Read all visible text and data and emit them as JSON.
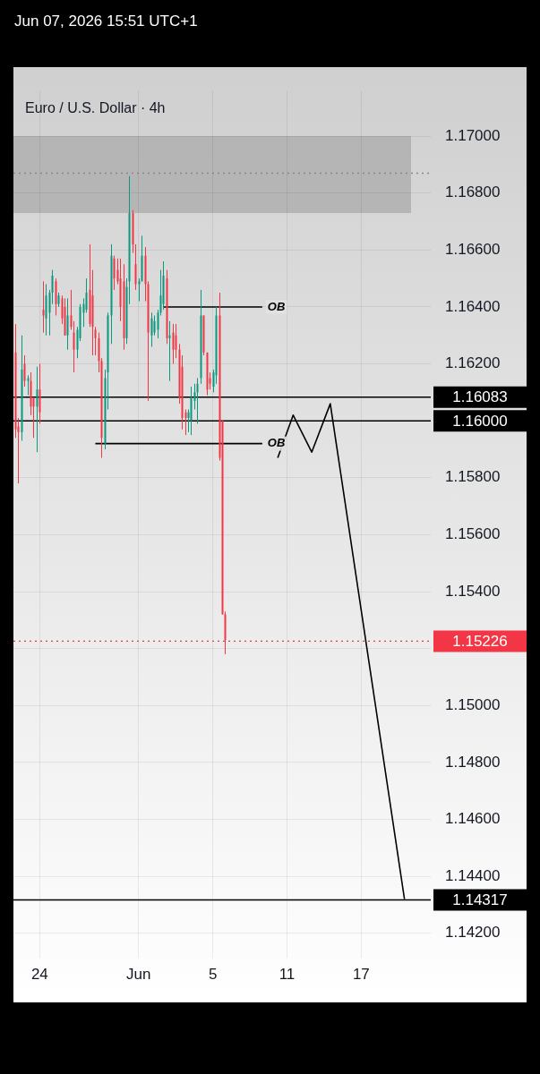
{
  "chart_data": {
    "type": "candlestick",
    "title": "Euro / U.S. Dollar · 4h",
    "annotations": [
      "Jun 07, 2026 15:51 UTC+1",
      "OB",
      "OB"
    ],
    "categories": [
      null,
      null,
      null,
      null,
      null,
      null,
      null,
      null,
      "24",
      null,
      null,
      null,
      null,
      null,
      null,
      null,
      null,
      null,
      null,
      null,
      null,
      null,
      null,
      null,
      null,
      null,
      null,
      null,
      null,
      null,
      null,
      null,
      null,
      null,
      null,
      null,
      null,
      null,
      null,
      null,
      "Jun",
      null,
      null,
      null,
      null,
      null,
      null,
      null,
      null,
      null,
      null,
      null,
      null,
      null,
      null,
      null,
      null,
      null,
      null,
      null,
      null,
      null,
      null,
      null,
      "5",
      null,
      null,
      null,
      null,
      null,
      null,
      null,
      null,
      null,
      null,
      null,
      null,
      null,
      null,
      null,
      null,
      null,
      null,
      null,
      null,
      null,
      null,
      null,
      "11",
      null,
      null,
      null,
      null,
      null,
      null,
      null,
      null,
      null,
      null,
      null,
      null,
      null,
      null,
      null,
      null,
      null,
      null,
      null,
      null,
      null,
      null,
      null,
      "17",
      null,
      null,
      null,
      null,
      null,
      null,
      null,
      null,
      null,
      null,
      null,
      null,
      null,
      null,
      null,
      null,
      null,
      null,
      null,
      null,
      null,
      null
    ],
    "ohlc": [
      [
        1.1624,
        1.1634,
        1.1594,
        1.1597
      ],
      [
        1.1598,
        1.1601,
        1.1578,
        1.1596
      ],
      [
        1.1596,
        1.163,
        1.1593,
        1.1618
      ],
      [
        1.162,
        1.1623,
        1.1612,
        1.1614
      ],
      [
        1.1614,
        1.1616,
        1.1609,
        1.1615
      ],
      [
        1.1614,
        1.1617,
        1.1602,
        1.1605
      ],
      [
        1.1608,
        1.1608,
        1.1594,
        1.1605
      ],
      [
        1.1605,
        1.1619,
        1.1589,
        1.1611
      ],
      [
        1.1611,
        1.162,
        1.1599,
        1.1603
      ],
      [
        1.1639,
        1.1649,
        1.1631,
        1.1637
      ],
      [
        1.1636,
        1.1648,
        1.163,
        1.1644
      ],
      [
        1.1638,
        1.1646,
        1.163,
        1.1645
      ],
      [
        1.1645,
        1.1653,
        1.1641,
        1.1651
      ],
      [
        1.1649,
        1.165,
        1.1637,
        1.1641
      ],
      [
        1.1641,
        1.1645,
        1.164,
        1.1644
      ],
      [
        1.1643,
        1.1644,
        1.1634,
        1.1636
      ],
      [
        1.164,
        1.1643,
        1.163,
        1.163
      ],
      [
        1.163,
        1.1643,
        1.1625,
        1.1637
      ],
      [
        1.1637,
        1.1646,
        1.1632,
        1.1633
      ],
      [
        1.1631,
        1.1635,
        1.1617,
        1.1625
      ],
      [
        1.1625,
        1.1633,
        1.1622,
        1.1632
      ],
      [
        1.1629,
        1.1641,
        1.1628,
        1.164
      ],
      [
        1.1638,
        1.1643,
        1.1633,
        1.1641
      ],
      [
        1.1639,
        1.165,
        1.1638,
        1.1645
      ],
      [
        1.1646,
        1.1662,
        1.1633,
        1.1634
      ],
      [
        1.1644,
        1.1653,
        1.1623,
        1.1633
      ],
      [
        1.1632,
        1.1633,
        1.1623,
        1.1629
      ],
      [
        1.1629,
        1.1631,
        1.1617,
        1.1621
      ],
      [
        1.1621,
        1.1622,
        1.1587,
        1.1594
      ],
      [
        1.1592,
        1.1618,
        1.159,
        1.1615
      ],
      [
        1.1617,
        1.1638,
        1.1604,
        1.1637
      ],
      [
        1.1637,
        1.1662,
        1.1627,
        1.1658
      ],
      [
        1.1657,
        1.1658,
        1.1646,
        1.165
      ],
      [
        1.1653,
        1.1657,
        1.1648,
        1.1649
      ],
      [
        1.165,
        1.1657,
        1.1635,
        1.164
      ],
      [
        1.1649,
        1.1655,
        1.1625,
        1.1629
      ],
      [
        1.1629,
        1.165,
        1.1627,
        1.1647
      ],
      [
        1.1649,
        1.1686,
        1.1641,
        1.1673
      ],
      [
        1.1673,
        1.1674,
        1.1659,
        1.1662
      ],
      [
        1.1655,
        1.1662,
        1.1646,
        1.1648
      ],
      [
        1.1648,
        1.165,
        1.1642,
        1.1649
      ],
      [
        1.1649,
        1.1665,
        1.1649,
        1.1658
      ],
      [
        1.1658,
        1.1661,
        1.1642,
        1.1648
      ],
      [
        1.1648,
        1.1649,
        1.1607,
        1.1631
      ],
      [
        1.163,
        1.1638,
        1.1626,
        1.1636
      ],
      [
        1.1631,
        1.1637,
        1.163,
        1.1635
      ],
      [
        1.1632,
        1.1639,
        1.1629,
        1.1638
      ],
      [
        1.1638,
        1.1653,
        1.1637,
        1.1644
      ],
      [
        1.1641,
        1.1656,
        1.1639,
        1.1651
      ],
      [
        1.165,
        1.1653,
        1.1627,
        1.1629
      ],
      [
        1.1629,
        1.1635,
        1.1614,
        1.163
      ],
      [
        1.1631,
        1.1634,
        1.162,
        1.1625
      ],
      [
        1.163,
        1.1634,
        1.1622,
        1.1625
      ],
      [
        1.1625,
        1.1627,
        1.1606,
        1.1608
      ],
      [
        1.1619,
        1.1623,
        1.1597,
        1.1601
      ],
      [
        1.1603,
        1.1604,
        1.1595,
        1.1601
      ],
      [
        1.1601,
        1.1604,
        1.1596,
        1.1603
      ],
      [
        1.16,
        1.1612,
        1.1595,
        1.1608
      ],
      [
        1.1607,
        1.1613,
        1.1604,
        1.161
      ],
      [
        1.161,
        1.1615,
        1.1599,
        1.1613
      ],
      [
        1.1615,
        1.1646,
        1.1613,
        1.1637
      ],
      [
        1.1637,
        1.1637,
        1.1623,
        1.1624
      ],
      [
        1.1624,
        1.1624,
        1.1609,
        1.1611
      ],
      [
        1.1615,
        1.1617,
        1.1611,
        1.1613
      ],
      [
        1.1612,
        1.1618,
        1.161,
        1.1617
      ],
      [
        1.1616,
        1.164,
        1.1613,
        1.1637
      ],
      [
        1.1637,
        1.1645,
        1.1586,
        1.1587
      ],
      [
        1.16,
        1.16,
        1.1532,
        1.1532
      ],
      [
        1.1532,
        1.1533,
        1.1518,
        1.1523
      ],
      null,
      null,
      null,
      null,
      null,
      null,
      null,
      null,
      null,
      null,
      null,
      null,
      null,
      null,
      null,
      null,
      null,
      null,
      null,
      null,
      null,
      null,
      null,
      null,
      null,
      null,
      null,
      null,
      null,
      null,
      null,
      null,
      null,
      null,
      null,
      null,
      null,
      null,
      null,
      null,
      null,
      null,
      null,
      null,
      null,
      null,
      null,
      null,
      null,
      null,
      null,
      null,
      null,
      null,
      null,
      null,
      null,
      null,
      null,
      null,
      null,
      null,
      null,
      null,
      null,
      null
    ],
    "colors": [
      "#f23645",
      "#f23645",
      "#089981",
      "#f23645",
      "#089981",
      "#f23645",
      "#f23645",
      "#089981",
      "#f23645",
      "#f23645",
      "#089981",
      "#089981",
      "#089981",
      "#f23645",
      "#089981",
      "#f23645",
      "#f23645",
      "#089981",
      "#f23645",
      "#f23645",
      "#089981",
      "#089981",
      "#089981",
      "#089981",
      "#f23645",
      "#f23645",
      "#f23645",
      "#f23645",
      "#f23645",
      "#089981",
      "#089981",
      "#089981",
      "#f23645",
      "#f23645",
      "#f23645",
      "#f23645",
      "#089981",
      "#089981",
      "#f23645",
      "#f23645",
      "#089981",
      "#089981",
      "#f23645",
      "#f23645",
      "#089981",
      "#089981",
      "#089981",
      "#089981",
      "#089981",
      "#f23645",
      "#089981",
      "#f23645",
      "#f23645",
      "#f23645",
      "#f23645",
      "#f23645",
      "#089981",
      "#089981",
      "#089981",
      "#089981",
      "#089981",
      "#f23645",
      "#f23645",
      "#f23645",
      "#089981",
      "#089981",
      "#f23645",
      "#f23645",
      "#f23645",
      null,
      null,
      null,
      null,
      null,
      null,
      null,
      null,
      null,
      null,
      null,
      null,
      null,
      null,
      null,
      null,
      null,
      null,
      null,
      null,
      null,
      null,
      null,
      null,
      null,
      null,
      null,
      null,
      null,
      null,
      null,
      null,
      null,
      null,
      null,
      null,
      null,
      null,
      null,
      null,
      null,
      null,
      null,
      null,
      null,
      null,
      null,
      null,
      null,
      null,
      null,
      null,
      null,
      null,
      null,
      null,
      null,
      null,
      null,
      null,
      null,
      null,
      null,
      null,
      null,
      null
    ],
    "series": [
      {
        "type": "line",
        "color": "#000000",
        "values": [
          null,
          null,
          null,
          null,
          null,
          null,
          null,
          null,
          null,
          null,
          null,
          null,
          null,
          null,
          null,
          null,
          null,
          null,
          null,
          null,
          null,
          null,
          null,
          null,
          null,
          null,
          null,
          null,
          null,
          null,
          null,
          null,
          null,
          null,
          null,
          null,
          null,
          null,
          null,
          null,
          null,
          null,
          null,
          null,
          null,
          null,
          null,
          null,
          1.164,
          null,
          null,
          null,
          null,
          null,
          null,
          null,
          null,
          null,
          null,
          null,
          null,
          null,
          null,
          null,
          null,
          null,
          null,
          null,
          null,
          null,
          null,
          null,
          null,
          null,
          null,
          null,
          null,
          null,
          null,
          null,
          1.164,
          null,
          null,
          null,
          null,
          null,
          null,
          null,
          null,
          null,
          null,
          null,
          null,
          null,
          null,
          null,
          null,
          null,
          null,
          null,
          null,
          null,
          null,
          null,
          null,
          null,
          null,
          null,
          null,
          null,
          null,
          null,
          null,
          null,
          null,
          null,
          null,
          null,
          null,
          null,
          null,
          null,
          null,
          null,
          null,
          null,
          null,
          null,
          null,
          null,
          null,
          null,
          null,
          null,
          null
        ]
      },
      {
        "type": "line",
        "color": "#000000",
        "values": [
          null,
          null,
          null,
          null,
          null,
          null,
          null,
          null,
          null,
          null,
          null,
          null,
          null,
          null,
          null,
          null,
          null,
          null,
          null,
          null,
          null,
          null,
          null,
          null,
          null,
          null,
          1.1592,
          null,
          null,
          null,
          null,
          null,
          null,
          null,
          null,
          null,
          null,
          null,
          null,
          null,
          null,
          null,
          null,
          null,
          null,
          null,
          null,
          null,
          null,
          null,
          null,
          null,
          null,
          null,
          null,
          null,
          null,
          null,
          null,
          null,
          null,
          null,
          null,
          null,
          null,
          null,
          null,
          null,
          null,
          null,
          null,
          null,
          null,
          null,
          null,
          null,
          null,
          null,
          null,
          null,
          1.1592,
          null,
          null,
          null,
          null,
          null,
          null,
          null,
          null,
          null,
          null,
          null,
          null,
          null,
          null,
          null,
          null,
          null,
          null,
          null,
          null,
          null,
          null,
          null,
          null,
          null,
          null,
          null,
          null,
          null,
          null,
          null,
          null,
          null,
          null,
          null,
          null,
          null,
          null,
          null,
          null,
          null,
          null,
          null,
          null,
          null,
          null,
          null,
          null,
          null,
          null,
          null,
          null,
          null,
          null
        ]
      },
      {
        "type": "line",
        "color": "#000000",
        "values": [
          null,
          null,
          null,
          null,
          null,
          null,
          null,
          null,
          null,
          null,
          null,
          null,
          null,
          null,
          null,
          null,
          null,
          null,
          null,
          null,
          null,
          null,
          null,
          null,
          null,
          null,
          null,
          null,
          null,
          null,
          null,
          null,
          null,
          null,
          null,
          null,
          null,
          null,
          null,
          null,
          null,
          null,
          null,
          null,
          null,
          null,
          null,
          null,
          null,
          null,
          null,
          null,
          null,
          null,
          null,
          null,
          null,
          null,
          null,
          null,
          null,
          null,
          null,
          null,
          null,
          null,
          null,
          null,
          null,
          null,
          null,
          null,
          null,
          null,
          null,
          null,
          null,
          null,
          null,
          null,
          null,
          null,
          null,
          null,
          null,
          1.1587,
          null,
          null,
          null,
          null,
          1.1602,
          null,
          null,
          null,
          null,
          null,
          1.1589,
          null,
          null,
          null,
          null,
          null,
          1.1606,
          null,
          null,
          null,
          null,
          null,
          null,
          null,
          null,
          null,
          null,
          null,
          null,
          null,
          null,
          null,
          null,
          null,
          null,
          null,
          null,
          null,
          null,
          null,
          1.1432,
          null,
          null,
          null,
          null,
          null,
          null,
          null,
          null
        ]
      }
    ],
    "ylim": [
      1.1413,
      1.1716
    ],
    "yticks": [
      {
        "value": 1.142,
        "label": "1.14200"
      },
      {
        "value": 1.144,
        "label": "1.14400"
      },
      {
        "value": 1.146,
        "label": "1.14600"
      },
      {
        "value": 1.148,
        "label": "1.14800"
      },
      {
        "value": 1.15,
        "label": "1.15000"
      },
      {
        "value": 1.152,
        "label": null
      },
      {
        "value": 1.154,
        "label": "1.15400"
      },
      {
        "value": 1.156,
        "label": "1.15600"
      },
      {
        "value": 1.158,
        "label": "1.15800"
      },
      {
        "value": 1.16,
        "label": null
      },
      {
        "value": 1.162,
        "label": "1.16200"
      },
      {
        "value": 1.164,
        "label": "1.16400"
      },
      {
        "value": 1.166,
        "label": "1.16600"
      },
      {
        "value": 1.168,
        "label": "1.16800"
      },
      {
        "value": 1.17,
        "label": "1.17000"
      }
    ],
    "ref_lines": [
      {
        "axis": "y",
        "value": 1.16083,
        "label": "1.16083",
        "color": "#000000"
      },
      {
        "axis": "y",
        "value": 1.16,
        "label": "1.16000",
        "color": "#000000"
      },
      {
        "axis": "y",
        "value": 1.15226,
        "label": "1.15226",
        "color": "#f23645",
        "line_style": "dotted"
      },
      {
        "axis": "y",
        "value": 1.14317,
        "label": "1.14317",
        "color": "#000000"
      },
      {
        "axis": "y",
        "value": 1.1687,
        "color": "#888888",
        "line_style": "dotted"
      }
    ],
    "bands": [
      {
        "axis": "y",
        "from": 1.1673,
        "to": 1.17,
        "color": "#9a9a9a"
      }
    ],
    "grid": true,
    "legend": false,
    "marker": "none"
  }
}
